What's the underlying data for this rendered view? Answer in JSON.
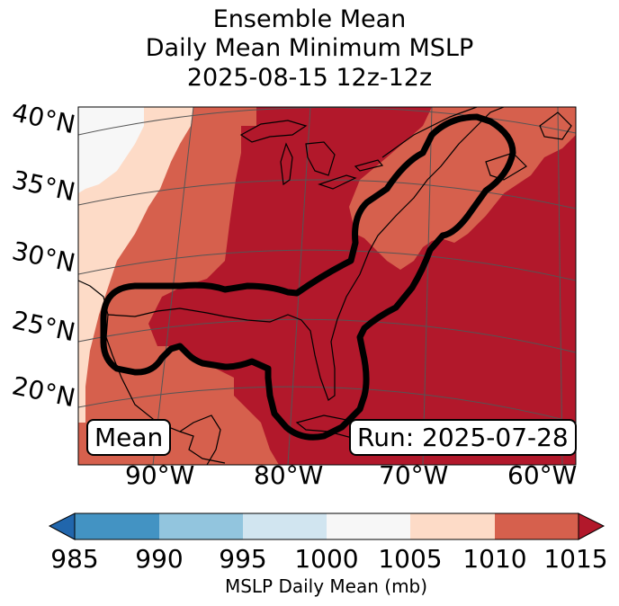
{
  "title": {
    "line1": "Ensemble Mean",
    "line2": "Daily Mean Minimum MSLP",
    "line3": "2025-08-15 12z-12z"
  },
  "lat_labels": [
    "40°N",
    "35°N",
    "30°N",
    "25°N",
    "20°N"
  ],
  "lon_labels": [
    "90°W",
    "80°W",
    "70°W",
    "60°W"
  ],
  "mean_badge": "Mean",
  "run_badge": "Run: 2025-07-28",
  "colorbar": {
    "label": "MSLP Daily Mean (mb)",
    "ticks": [
      "985",
      "990",
      "995",
      "1000",
      "1005",
      "1010",
      "1015"
    ],
    "bins": [
      {
        "range": "<985",
        "color": "#2166ac"
      },
      {
        "range": "985-990",
        "color": "#4393c3"
      },
      {
        "range": "990-995",
        "color": "#92c5de"
      },
      {
        "range": "995-1000",
        "color": "#d1e5f0"
      },
      {
        "range": "1000-1005",
        "color": "#f7f7f7"
      },
      {
        "range": "1005-1010",
        "color": "#fddbc7"
      },
      {
        "range": "1010-1015",
        "color": "#d6604d"
      },
      {
        "range": ">1015",
        "color": "#b2182b"
      }
    ]
  }
}
